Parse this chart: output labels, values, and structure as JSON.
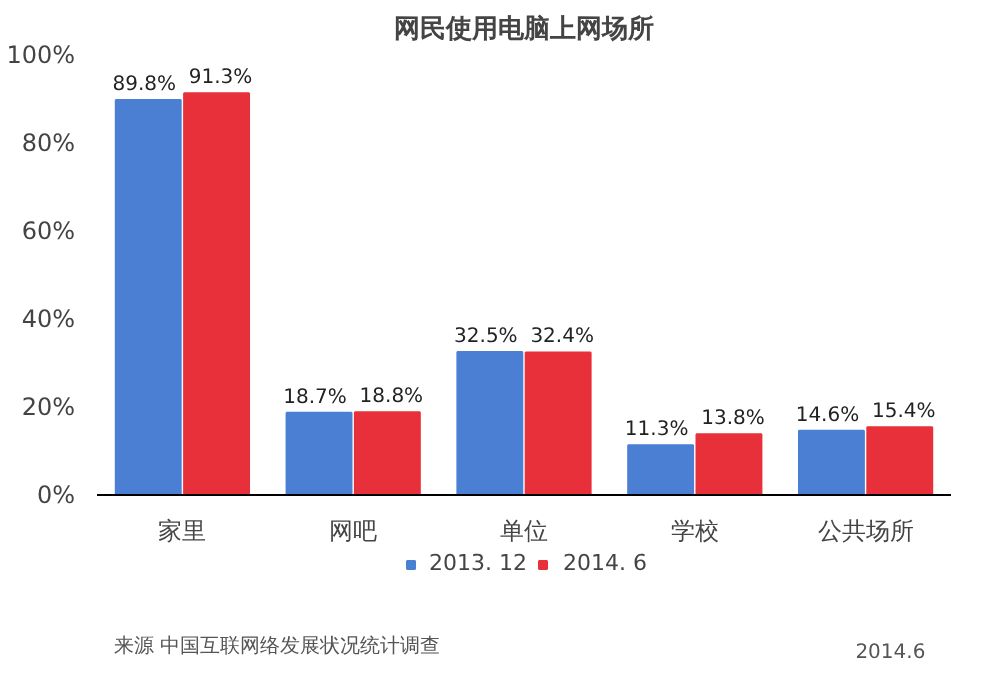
{
  "chart_data": {
    "type": "bar",
    "title": "网民使用电脑上网场所",
    "categories": [
      "家里",
      "网吧",
      "单位",
      "学校",
      "公共场所"
    ],
    "series": [
      {
        "name": "2013. 12",
        "color": "#4a7fd4",
        "values": [
          89.8,
          18.7,
          32.5,
          11.3,
          14.6
        ],
        "value_labels": [
          "89.8%",
          "18.7%",
          "32.5%",
          "11.3%",
          "14.6%"
        ]
      },
      {
        "name": "2014. 6",
        "color": "#e8303a",
        "values": [
          91.3,
          18.8,
          32.4,
          13.8,
          15.4
        ],
        "value_labels": [
          "91.3%",
          "18.8%",
          "32.4%",
          "13.8%",
          "15.4%"
        ]
      }
    ],
    "ylim": [
      0,
      100
    ],
    "yticks": [
      {
        "value": 0,
        "label": "0%"
      },
      {
        "value": 20,
        "label": "20%"
      },
      {
        "value": 40,
        "label": "40%"
      },
      {
        "value": 60,
        "label": "60%"
      },
      {
        "value": 80,
        "label": "80%"
      },
      {
        "value": 100,
        "label": "100%"
      }
    ],
    "grid": false,
    "legend": "bottom",
    "annotations": [
      "来源 中国互联网络发展状况统计调查",
      "2014.6"
    ]
  }
}
